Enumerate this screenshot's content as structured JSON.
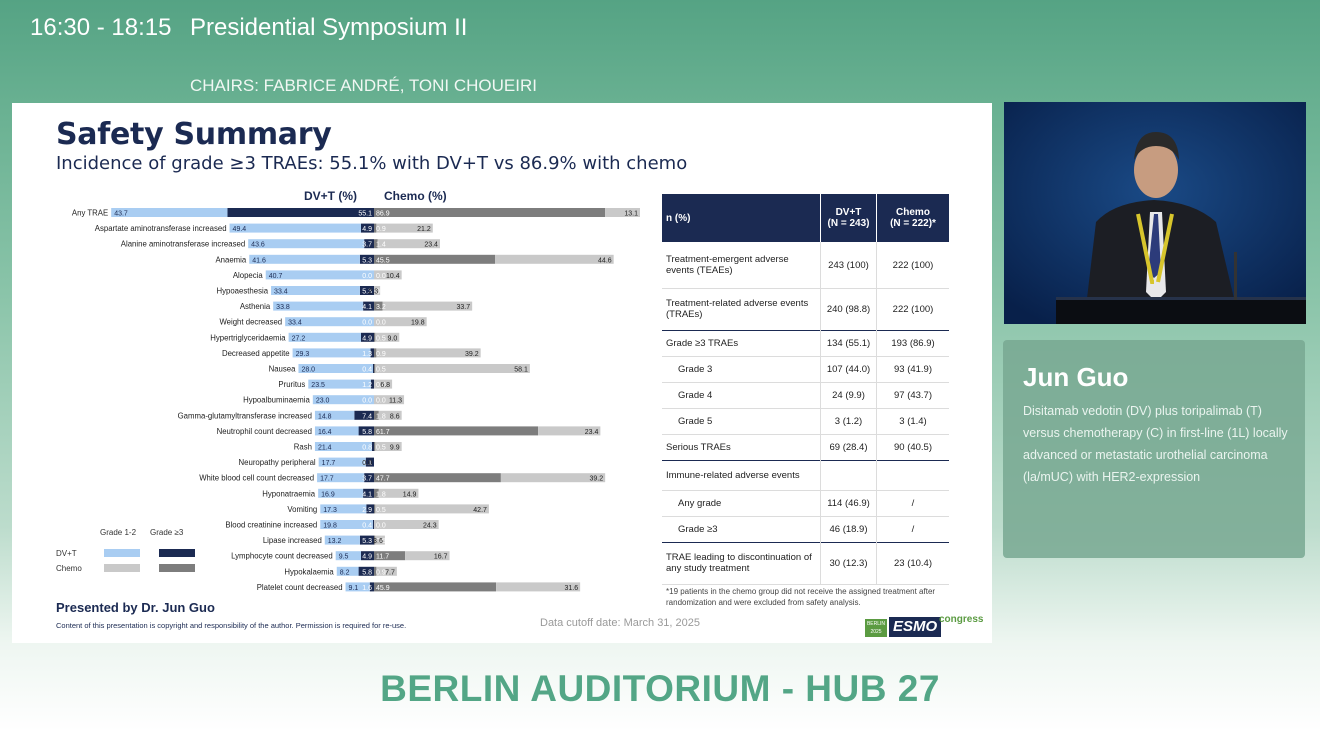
{
  "session": {
    "time": "16:30 - 18:15",
    "title": "Presidential Symposium II",
    "chairs": "CHAIRS: FABRICE ANDRÉ, TONI CHOUEIRI"
  },
  "slide": {
    "title": "Safety Summary",
    "subtitle": "Incidence of grade ≥3 TRAEs: 55.1% with DV+T vs 86.9% with chemo",
    "col_dvt": "DV+T (%)",
    "col_chemo": "Chemo (%)",
    "legend": {
      "grade12": "Grade 1-2",
      "grade3": "Grade ≥3",
      "dvt": "DV+T",
      "chemo": "Chemo"
    },
    "presented_by": "Presented by Dr. Jun Guo",
    "copyright": "Content of this presentation is copyright and responsibility of the author. Permission is required for re-use.",
    "cutoff": "Data cutoff date: March 31, 2025",
    "logo": {
      "city": "BERLIN 2025",
      "name": "ESMO",
      "suffix": "congress"
    }
  },
  "colors": {
    "dvt_g12": "#a9cdf2",
    "dvt_g3": "#1b2a52",
    "chemo_g12": "#c9c9c9",
    "chemo_g3": "#7d7d7d",
    "brand_green": "#53a686"
  },
  "chart_data": {
    "type": "bar",
    "title": "Safety Summary",
    "subtitle": "Incidence of grade ≥3 TRAEs: 55.1% with DV+T vs 86.9% with chemo",
    "orientation": "horizontal-butterfly",
    "categories": [
      "Any TRAE",
      "Aspartate aminotransferase increased",
      "Alanine aminotransferase increased",
      "Anaemia",
      "Alopecia",
      "Hypoaesthesia",
      "Asthenia",
      "Weight decreased",
      "Hypertriglyceridaemia",
      "Decreased appetite",
      "Nausea",
      "Pruritus",
      "Hypoalbuminaemia",
      "Gamma-glutamyltransferase increased",
      "Neutrophil count decreased",
      "Rash",
      "Neuropathy peripheral",
      "White blood cell count decreased",
      "Hyponatraemia",
      "Vomiting",
      "Blood creatinine increased",
      "Lipase increased",
      "Lymphocyte count decreased",
      "Hypokalaemia",
      "Platelet count decreased"
    ],
    "series": [
      {
        "name": "DV+T Grade 1-2",
        "values": [
          43.7,
          49.4,
          43.6,
          41.6,
          40.7,
          33.4,
          33.8,
          33.4,
          27.2,
          29.3,
          28.0,
          23.5,
          23.0,
          14.8,
          16.4,
          21.4,
          17.7,
          17.7,
          16.9,
          17.3,
          19.8,
          13.2,
          9.5,
          8.2,
          9.1
        ]
      },
      {
        "name": "DV+T Grade ≥3",
        "values": [
          55.1,
          4.9,
          3.7,
          5.3,
          0.0,
          5.3,
          4.1,
          0.0,
          4.9,
          1.3,
          0.4,
          1.2,
          0.0,
          7.4,
          5.8,
          0.8,
          3.1,
          3.7,
          4.1,
          2.9,
          0.4,
          5.3,
          4.9,
          5.8,
          1.6
        ]
      },
      {
        "name": "Chemo Grade ≥3",
        "values": [
          86.9,
          0.9,
          1.4,
          45.5,
          0.0,
          0.0,
          3.2,
          0.0,
          0.5,
          0.9,
          0.5,
          0.0,
          0.0,
          1.8,
          61.7,
          0.5,
          0.0,
          47.7,
          1.8,
          0.5,
          0.0,
          0.5,
          11.7,
          0.9,
          45.9
        ]
      },
      {
        "name": "Chemo Grade 1-2",
        "values": [
          13.1,
          21.2,
          23.4,
          44.6,
          10.4,
          2.3,
          33.7,
          19.8,
          9.0,
          39.2,
          58.1,
          6.8,
          11.3,
          8.6,
          23.4,
          9.9,
          0.0,
          39.2,
          14.9,
          42.7,
          24.3,
          3.6,
          16.7,
          7.7,
          31.6
        ]
      }
    ],
    "xlabel": "DV+T (%) | Chemo (%)",
    "legend_position": "bottom-left"
  },
  "table": {
    "header": {
      "label": "n (%)",
      "dvt": "DV+T\n(N = 243)",
      "chemo": "Chemo\n(N = 222)*"
    },
    "rows": [
      {
        "label": "Treatment-emergent adverse events (TEAEs)",
        "dvt": "243 (100)",
        "chemo": "222 (100)"
      },
      {
        "label": "Treatment-related adverse events (TRAEs)",
        "dvt": "240 (98.8)",
        "chemo": "222 (100)"
      },
      {
        "label": "Grade ≥3 TRAEs",
        "dvt": "134 (55.1)",
        "chemo": "193 (86.9)"
      },
      {
        "label": "Grade 3",
        "dvt": "107 (44.0)",
        "chemo": "93 (41.9)"
      },
      {
        "label": "Grade 4",
        "dvt": "24 (9.9)",
        "chemo": "97 (43.7)"
      },
      {
        "label": "Grade 5",
        "dvt": "3 (1.2)",
        "chemo": "3 (1.4)"
      },
      {
        "label": "Serious TRAEs",
        "dvt": "69 (28.4)",
        "chemo": "90 (40.5)"
      },
      {
        "label": "Immune-related adverse events",
        "dvt": "",
        "chemo": ""
      },
      {
        "label": "Any grade",
        "dvt": "114 (46.9)",
        "chemo": "/"
      },
      {
        "label": "Grade ≥3",
        "dvt": "46 (18.9)",
        "chemo": "/"
      },
      {
        "label": "TRAE leading to discontinuation of any study treatment",
        "dvt": "30 (12.3)",
        "chemo": "23 (10.4)"
      }
    ],
    "footnote": "*19 patients in the chemo group did not receive the assigned treatment after randomization and were excluded from safety analysis."
  },
  "speaker": {
    "name": "Jun Guo",
    "description": "Disitamab vedotin (DV) plus toripalimab (T) versus chemotherapy (C) in first-line (1L) locally advanced or metastatic urothelial carcinoma (la/mUC) with HER2-expression"
  },
  "location": "BERLIN AUDITORIUM - HUB 27"
}
